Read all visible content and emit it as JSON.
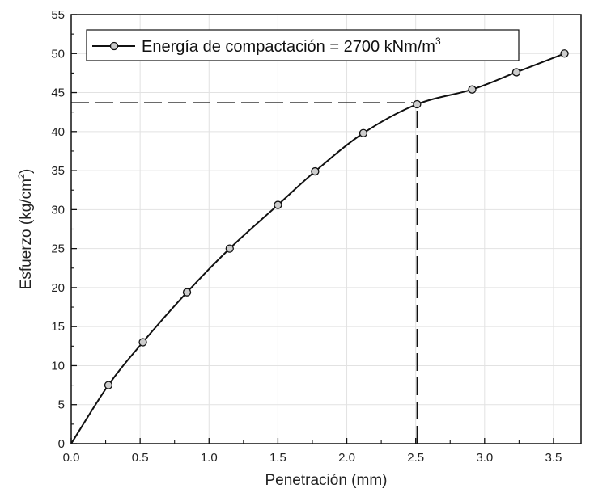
{
  "chart_data": {
    "type": "line",
    "title": "",
    "xlabel": "Penetración (mm)",
    "ylabel": "Esfuerzo (kg/cm",
    "ylabel_sup": "2",
    "ylabel_end": ")",
    "xlim": [
      0,
      3.7
    ],
    "ylim": [
      0,
      55
    ],
    "x_ticks": [
      0.0,
      0.5,
      1.0,
      1.5,
      2.0,
      2.5,
      3.0,
      3.5
    ],
    "x_tick_labels": [
      "0.0",
      "0.5",
      "1.0",
      "1.5",
      "2.0",
      "2.5",
      "3.0",
      "3.5"
    ],
    "y_ticks": [
      0,
      5,
      10,
      15,
      20,
      25,
      30,
      35,
      40,
      45,
      50,
      55
    ],
    "y_tick_labels": [
      "0",
      "5",
      "10",
      "15",
      "20",
      "25",
      "30",
      "35",
      "40",
      "45",
      "50",
      "55"
    ],
    "grid": true,
    "legend_position": "top-left",
    "series": [
      {
        "name": "Energía de compactación = 2700 kNm/m",
        "name_sup": "3",
        "color": "#111111",
        "marker_fill": "#cccccc",
        "curve": [
          {
            "x": 0.0,
            "y": 0.0
          },
          {
            "x": 0.27,
            "y": 7.5
          },
          {
            "x": 0.52,
            "y": 13.0
          },
          {
            "x": 0.84,
            "y": 19.4
          },
          {
            "x": 1.15,
            "y": 25.0
          },
          {
            "x": 1.5,
            "y": 30.6
          },
          {
            "x": 1.77,
            "y": 34.9
          },
          {
            "x": 2.12,
            "y": 39.8
          },
          {
            "x": 2.51,
            "y": 43.5
          },
          {
            "x": 2.91,
            "y": 45.4
          },
          {
            "x": 3.23,
            "y": 47.6
          },
          {
            "x": 3.58,
            "y": 50.0
          }
        ],
        "markers": [
          {
            "x": 0.27,
            "y": 7.5
          },
          {
            "x": 0.52,
            "y": 13.0
          },
          {
            "x": 0.84,
            "y": 19.4
          },
          {
            "x": 1.15,
            "y": 25.0
          },
          {
            "x": 1.5,
            "y": 30.6
          },
          {
            "x": 1.77,
            "y": 34.9
          },
          {
            "x": 2.12,
            "y": 39.8
          },
          {
            "x": 2.51,
            "y": 43.5
          },
          {
            "x": 2.91,
            "y": 45.4
          },
          {
            "x": 3.23,
            "y": 47.6
          },
          {
            "x": 3.58,
            "y": 50.0
          }
        ]
      }
    ],
    "reference_lines": [
      {
        "type": "horizontal",
        "y": 43.7,
        "x_from": 0.0,
        "x_to": 2.51,
        "style": "dashed"
      },
      {
        "type": "vertical",
        "x": 2.51,
        "y_from": 0.0,
        "y_to": 43.7,
        "style": "dashed"
      }
    ]
  }
}
